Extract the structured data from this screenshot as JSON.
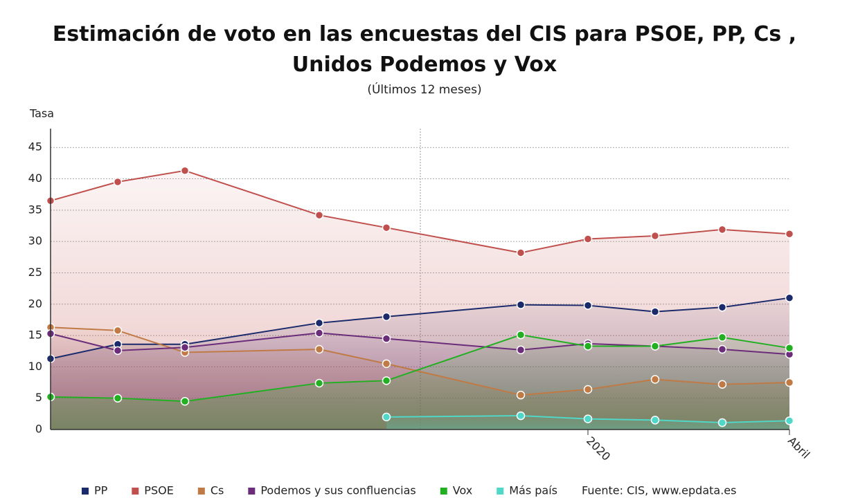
{
  "chart_data": {
    "type": "line",
    "title": "Estimación de voto en las encuestas del CIS para PSOE, PP, Cs , Unidos Podemos y Vox",
    "subtitle": "(Últimos 12 meses)",
    "y_label": "Tasa",
    "source": "Fuente: CIS, www.epdata.es",
    "categories": [
      null,
      null,
      null,
      null,
      null,
      null,
      null,
      null,
      "2020",
      null,
      null,
      "Abril"
    ],
    "connect_nulls": true,
    "area": true,
    "grid": true,
    "ylim": [
      0,
      48
    ],
    "yticks": [
      0,
      5,
      10,
      15,
      20,
      25,
      30,
      35,
      40,
      45
    ],
    "legend": "bottom",
    "series": [
      {
        "name": "PP",
        "color": "#1b2a6b",
        "values": [
          11.3,
          13.6,
          13.6,
          null,
          17.0,
          18.0,
          null,
          19.9,
          19.8,
          18.8,
          19.5,
          21.0
        ]
      },
      {
        "name": "PSOE",
        "color": "#c0504d",
        "values": [
          36.5,
          39.5,
          41.3,
          null,
          34.2,
          32.2,
          null,
          28.2,
          30.4,
          30.9,
          31.9,
          31.2
        ]
      },
      {
        "name": "Cs",
        "color": "#c07a45",
        "values": [
          16.3,
          15.8,
          12.3,
          null,
          12.8,
          10.5,
          null,
          5.5,
          6.4,
          8.0,
          7.2,
          7.5
        ]
      },
      {
        "name": "Podemos y sus confluencias",
        "color": "#6b2c7a",
        "values": [
          15.3,
          12.6,
          13.1,
          null,
          15.4,
          14.5,
          null,
          12.7,
          13.7,
          13.3,
          12.8,
          12.0
        ]
      },
      {
        "name": "Vox",
        "color": "#22b022",
        "values": [
          5.2,
          5.0,
          4.5,
          null,
          7.4,
          7.8,
          null,
          15.1,
          13.3,
          13.3,
          14.7,
          13.0
        ]
      },
      {
        "name": "Más país",
        "color": "#4fd8c8",
        "values": [
          null,
          null,
          null,
          null,
          null,
          2.0,
          null,
          2.2,
          1.7,
          1.5,
          1.1,
          1.4
        ]
      }
    ]
  }
}
